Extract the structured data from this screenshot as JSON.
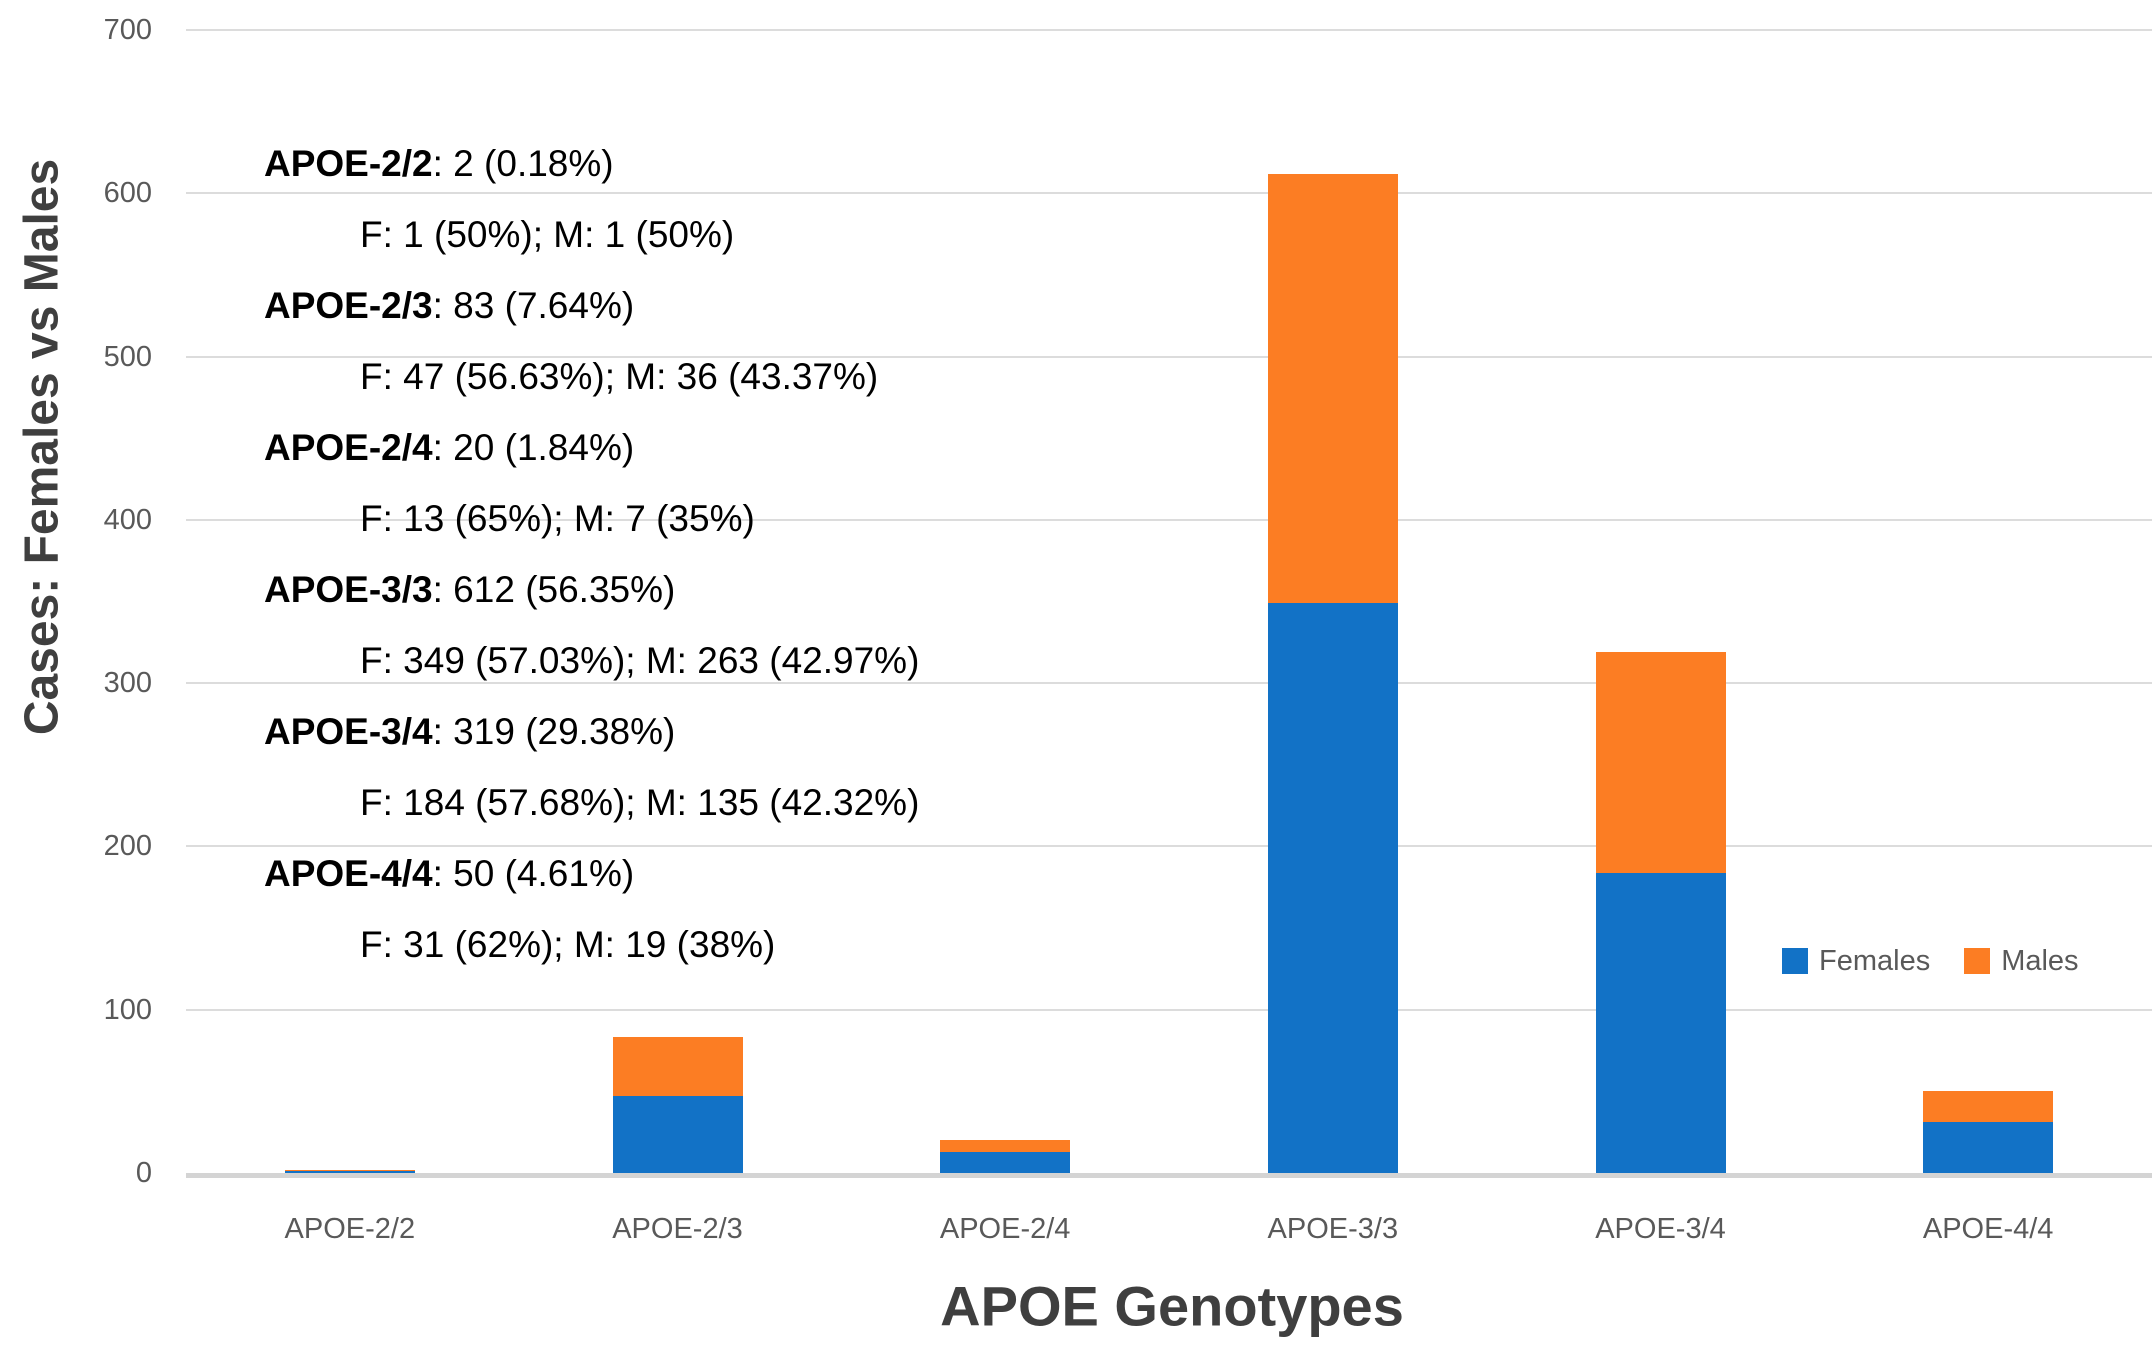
{
  "chart_data": {
    "type": "bar",
    "stacked": true,
    "title": "",
    "xlabel": "APOE Genotypes",
    "ylabel": "Cases: Females vs Males",
    "categories": [
      "APOE-2/2",
      "APOE-2/3",
      "APOE-2/4",
      "APOE-3/3",
      "APOE-3/4",
      "APOE-4/4"
    ],
    "series": [
      {
        "name": "Females",
        "color": "#1272C6",
        "values": [
          1,
          47,
          13,
          349,
          184,
          31
        ]
      },
      {
        "name": "Males",
        "color": "#FC7D23",
        "values": [
          1,
          36,
          7,
          263,
          135,
          19
        ]
      }
    ],
    "totals": [
      2,
      83,
      20,
      612,
      319,
      50
    ],
    "ylim": [
      0,
      700
    ],
    "yticks": [
      0,
      100,
      200,
      300,
      400,
      500,
      600,
      700
    ],
    "grid": true,
    "legend_position": "inside-right-middle",
    "annotations": [
      {
        "genotype": "APOE-2/2",
        "summary": ": 2 (0.18%)",
        "detail": "F: 1 (50%); M: 1 (50%)"
      },
      {
        "genotype": "APOE-2/3",
        "summary": ": 83 (7.64%)",
        "detail": "F: 47 (56.63%); M: 36 (43.37%)"
      },
      {
        "genotype": "APOE-2/4",
        "summary": ": 20 (1.84%)",
        "detail": "F: 13 (65%); M: 7 (35%)"
      },
      {
        "genotype": "APOE-3/3",
        "summary": ": 612 (56.35%)",
        "detail": "F: 349 (57.03%); M: 263 (42.97%)"
      },
      {
        "genotype": "APOE-3/4",
        "summary": ": 319 (29.38%)",
        "detail": "F: 184 (57.68%); M: 135 (42.32%)"
      },
      {
        "genotype": "APOE-4/4",
        "summary": ": 50 (4.61%)",
        "detail": "F: 31 (62%); M: 19 (38%)"
      }
    ]
  },
  "colors": {
    "females": "#1272C6",
    "males": "#FC7D23",
    "gridline": "#DCDCDC",
    "axis_line": "#D4D4D4",
    "tick_label": "#595959",
    "axis_title": "#3F3F3F",
    "annotation_text": "#000000",
    "background": "#FFFFFF"
  }
}
